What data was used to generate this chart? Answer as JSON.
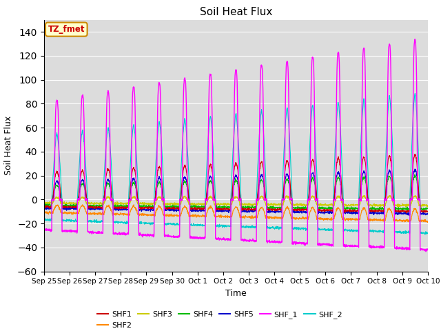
{
  "title": "Soil Heat Flux",
  "xlabel": "Time",
  "ylabel": "Soil Heat Flux",
  "ylim": [
    -60,
    150
  ],
  "yticks": [
    -60,
    -40,
    -20,
    0,
    20,
    40,
    60,
    80,
    100,
    120,
    140
  ],
  "background_color": "#dcdcdc",
  "series_colors": {
    "SHF1": "#cc0000",
    "SHF2": "#ff8800",
    "SHF3": "#cccc00",
    "SHF4": "#00bb00",
    "SHF5": "#0000cc",
    "SHF_1": "#ff00ff",
    "SHF_2": "#00cccc"
  },
  "annotation_text": "TZ_fmet",
  "annotation_bg": "#ffffcc",
  "annotation_border": "#cc8800",
  "annotation_text_color": "#cc0000",
  "x_tick_labels": [
    "Sep 25",
    "Sep 26",
    "Sep 27",
    "Sep 28",
    "Sep 29",
    "Sep 30",
    "Oct 1",
    "Oct 2",
    "Oct 3",
    "Oct 4",
    "Oct 5",
    "Oct 6",
    "Oct 7",
    "Oct 8",
    "Oct 9",
    "Oct 10"
  ],
  "n_days": 15,
  "points_per_day": 144
}
